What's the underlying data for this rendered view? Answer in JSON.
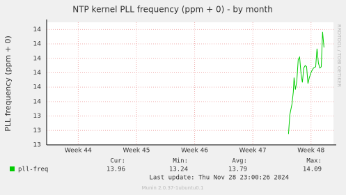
{
  "chart_data": {
    "type": "line",
    "title": "NTP kernel PLL frequency (ppm + 0) - by month",
    "y_label": "PLL frequency (ppm + 0)",
    "watermark": "RRDTOOL / TOBI OETIKER",
    "x": [
      29.09,
      29.25,
      29.51,
      29.67,
      29.76,
      29.92,
      30.09,
      30.26,
      30.43,
      30.6,
      30.76,
      30.93,
      31.1,
      31.27,
      31.43,
      31.6,
      31.85,
      32.1,
      32.36,
      32.52,
      32.69,
      32.86,
      33.03,
      33.19,
      33.36
    ],
    "series": [
      {
        "name": "pll-freq",
        "color": "#00cc00",
        "values": [
          13.24,
          13.4,
          13.49,
          13.59,
          13.71,
          13.61,
          13.68,
          13.86,
          13.88,
          13.74,
          13.67,
          13.79,
          13.81,
          13.8,
          13.66,
          13.71,
          13.76,
          13.79,
          13.8,
          13.95,
          13.83,
          13.79,
          13.8,
          14.09,
          13.96
        ]
      }
    ],
    "xlim": [
      0,
      34.5
    ],
    "xticks": [
      {
        "value": 3.8,
        "label": "Week 44"
      },
      {
        "value": 10.8,
        "label": "Week 45"
      },
      {
        "value": 17.8,
        "label": "Week 46"
      },
      {
        "value": 24.8,
        "label": "Week 47"
      },
      {
        "value": 31.8,
        "label": "Week 48"
      }
    ],
    "ylim": [
      13.15,
      14.17
    ],
    "yticks": [
      {
        "value": 13.15,
        "label": "13"
      },
      {
        "value": 13.27,
        "label": "13"
      },
      {
        "value": 13.39,
        "label": "13"
      },
      {
        "value": 13.51,
        "label": "14"
      },
      {
        "value": 13.63,
        "label": "14"
      },
      {
        "value": 13.75,
        "label": "14"
      },
      {
        "value": 13.87,
        "label": "14"
      },
      {
        "value": 13.99,
        "label": "14"
      },
      {
        "value": 14.11,
        "label": "14"
      }
    ],
    "grid": true,
    "summary": {
      "labels": [
        "Cur:",
        "Min:",
        "Avg:",
        "Max:"
      ],
      "values": [
        13.96,
        13.24,
        13.79,
        14.09
      ]
    },
    "last_update": "Last update: Thu Nov 28 23:00:26 2024",
    "footer": "Munin 2.0.37-1ubuntu0.1"
  }
}
